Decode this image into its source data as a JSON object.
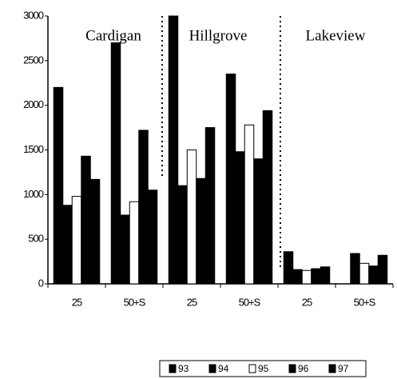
{
  "chart_data": {
    "type": "bar",
    "annotations": [
      "Cardigan",
      "Hillgrove",
      "Lakeview"
    ],
    "categories": [
      "25",
      "50+S",
      "25",
      "50+S",
      "25",
      "50+S"
    ],
    "series": [
      {
        "name": "93",
        "color": "#000000",
        "values": [
          2200,
          2700,
          3000,
          2350,
          360,
          0
        ]
      },
      {
        "name": "94",
        "color": "#000000",
        "values": [
          880,
          770,
          1100,
          1480,
          160,
          340
        ]
      },
      {
        "name": "95",
        "color": "#ffffff",
        "values": [
          980,
          920,
          1500,
          1780,
          150,
          230
        ]
      },
      {
        "name": "96",
        "color": "#000000",
        "values": [
          1430,
          1720,
          1180,
          1400,
          170,
          200
        ]
      },
      {
        "name": "97",
        "color": "#000000",
        "values": [
          1170,
          1050,
          1750,
          1940,
          190,
          320
        ]
      }
    ],
    "ylim": [
      0,
      3000
    ],
    "yticks": [
      0,
      500,
      1000,
      1500,
      2000,
      2500,
      3000
    ]
  }
}
